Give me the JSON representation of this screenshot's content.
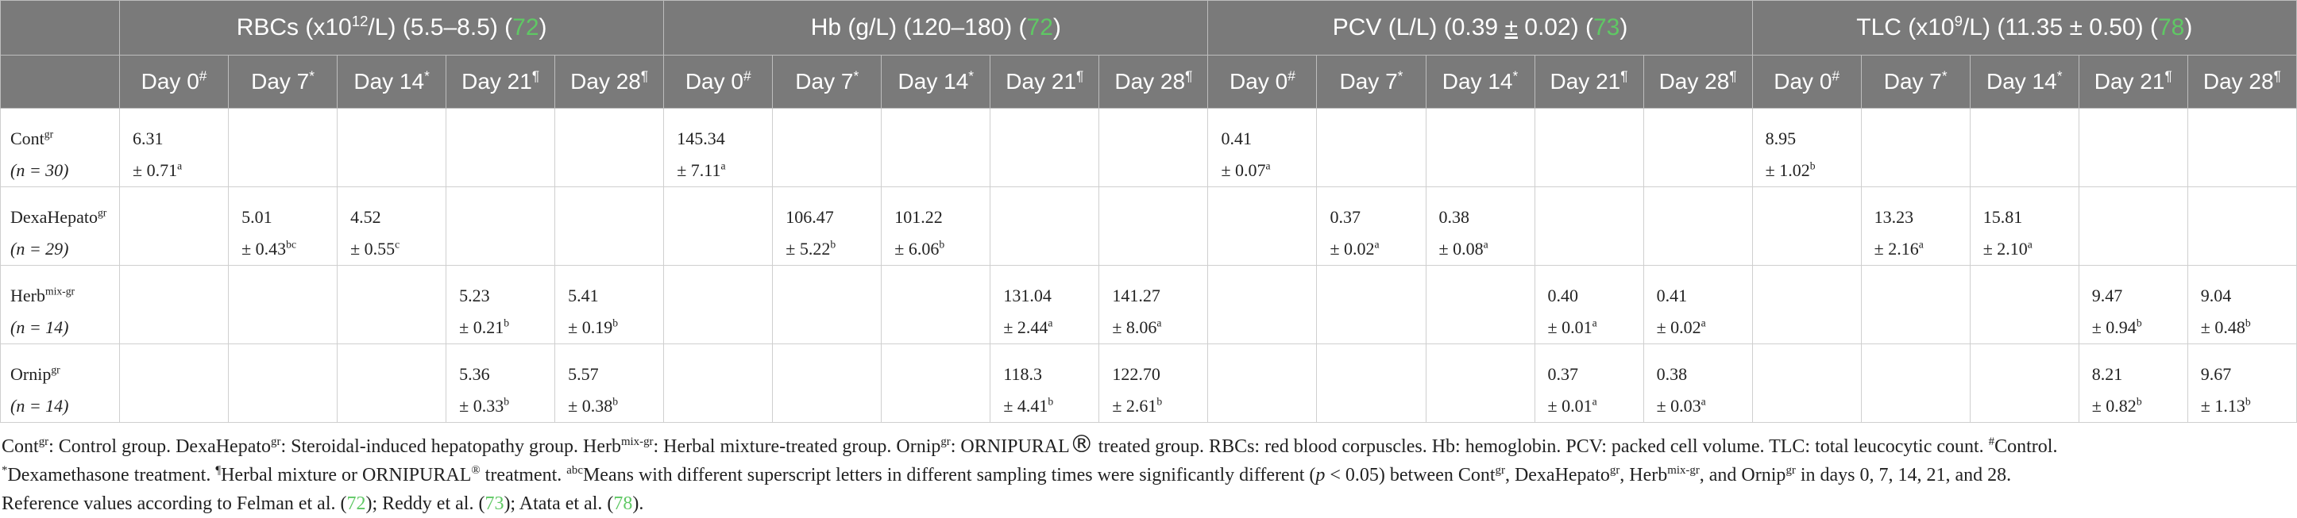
{
  "headers": {
    "groups": [
      {
        "title": "RBCs (",
        "unit_pre": "x10",
        "unit_sup": "12",
        "unit_post": "/L) (5.5–8.5) (",
        "ref": "72",
        "close": ")"
      },
      {
        "title": "Hb (g/L) (120–180) (",
        "unit_pre": "",
        "unit_sup": "",
        "unit_post": "",
        "ref": "72",
        "close": ")"
      },
      {
        "title": "PCV (L/L) (0.39 ",
        "unit_pre": "±",
        "unit_sup": "",
        "unit_post": " 0.02) (",
        "ref": "73",
        "close": ")"
      },
      {
        "title": "TLC (",
        "unit_pre": "x10",
        "unit_sup": "9",
        "unit_post": "/L) (11.35 ± 0.50) (",
        "ref": "78",
        "close": ")"
      }
    ],
    "days": [
      {
        "label": "Day 0",
        "mark": "#"
      },
      {
        "label": "Day 7",
        "mark": "*"
      },
      {
        "label": "Day 14",
        "mark": "*"
      },
      {
        "label": "Day 21",
        "mark": "¶"
      },
      {
        "label": "Day 28",
        "mark": "¶"
      }
    ]
  },
  "rows": [
    {
      "name": "Cont",
      "name_sup": "gr",
      "n": "(n = 30)",
      "cells": [
        {
          "v": "6.31",
          "sd": "± 0.71",
          "s": "a"
        },
        {},
        {},
        {},
        {},
        {
          "v": "145.34",
          "sd": "± 7.11",
          "s": "a"
        },
        {},
        {},
        {},
        {},
        {
          "v": "0.41",
          "sd": "± 0.07",
          "s": "a"
        },
        {},
        {},
        {},
        {},
        {
          "v": "8.95",
          "sd": "± 1.02",
          "s": "b"
        },
        {},
        {},
        {},
        {}
      ]
    },
    {
      "name": "DexaHepato",
      "name_sup": "gr",
      "n": "(n = 29)",
      "cells": [
        {},
        {
          "v": "5.01",
          "sd": "± 0.43",
          "s": "bc"
        },
        {
          "v": "4.52",
          "sd": "± 0.55",
          "s": "c"
        },
        {},
        {},
        {},
        {
          "v": "106.47",
          "sd": "± 5.22",
          "s": "b"
        },
        {
          "v": "101.22",
          "sd": "± 6.06",
          "s": "b"
        },
        {},
        {},
        {},
        {
          "v": "0.37",
          "sd": "± 0.02",
          "s": "a"
        },
        {
          "v": "0.38",
          "sd": "± 0.08",
          "s": "a"
        },
        {},
        {},
        {},
        {
          "v": "13.23",
          "sd": "± 2.16",
          "s": "a"
        },
        {
          "v": "15.81",
          "sd": "± 2.10",
          "s": "a"
        },
        {},
        {}
      ]
    },
    {
      "name": "Herb",
      "name_sup": "mix-gr",
      "n": "(n = 14)",
      "cells": [
        {},
        {},
        {},
        {
          "v": "5.23",
          "sd": "± 0.21",
          "s": "b"
        },
        {
          "v": "5.41",
          "sd": "± 0.19",
          "s": "b"
        },
        {},
        {},
        {},
        {
          "v": "131.04",
          "sd": "± 2.44",
          "s": "a"
        },
        {
          "v": "141.27",
          "sd": "± 8.06",
          "s": "a"
        },
        {},
        {},
        {},
        {
          "v": "0.40",
          "sd": "± 0.01",
          "s": "a"
        },
        {
          "v": "0.41",
          "sd": "± 0.02",
          "s": "a"
        },
        {},
        {},
        {},
        {
          "v": "9.47",
          "sd": "± 0.94",
          "s": "b"
        },
        {
          "v": "9.04",
          "sd": "± 0.48",
          "s": "b"
        }
      ]
    },
    {
      "name": "Ornip",
      "name_sup": "gr",
      "n": "(n = 14)",
      "cells": [
        {},
        {},
        {},
        {
          "v": "5.36",
          "sd": "± 0.33",
          "s": "b"
        },
        {
          "v": "5.57",
          "sd": "± 0.38",
          "s": "b"
        },
        {},
        {},
        {},
        {
          "v": "118.3",
          "sd": "± 4.41",
          "s": "b"
        },
        {
          "v": "122.70",
          "sd": "± 2.61",
          "s": "b"
        },
        {},
        {},
        {},
        {
          "v": "0.37",
          "sd": "± 0.01",
          "s": "a"
        },
        {
          "v": "0.38",
          "sd": "± 0.03",
          "s": "a"
        },
        {},
        {},
        {},
        {
          "v": "8.21",
          "sd": "± 0.82",
          "s": "b"
        },
        {
          "v": "9.67",
          "sd": "± 1.13",
          "s": "b"
        }
      ]
    }
  ],
  "footnote": {
    "line1": {
      "a": "Cont",
      "a_sup": "gr",
      "b": ": Control group. DexaHepato",
      "b_sup": "gr",
      "c": ": Steroidal-induced hepatopathy group. Herb",
      "c_sup": "mix-gr",
      "d": ": Herbal mixture-treated group. Ornip",
      "d_sup": "gr",
      "e": ": ORNIPURAL",
      "e_reg": "®",
      "f": " treated group. RBCs: red blood corpuscles. Hb: hemoglobin. PCV: packed cell volume. TLC: total leucocytic count. ",
      "f_sup": "#",
      "g": "Control."
    },
    "line2": {
      "a_sup": "*",
      "a": "Dexamethasone treatment. ",
      "b_sup": "¶",
      "b": "Herbal mixture or ORNIPURAL",
      "b2_sup": "®",
      "c": " treatment. ",
      "c_sup": "abc",
      "d": "Means with different superscript letters in different sampling times were significantly different (",
      "p": "p",
      "e": " < 0.05) between Cont",
      "e_sup": "gr",
      "f": ", DexaHepato",
      "f_sup": "gr",
      "g": ", Herb",
      "g_sup": "mix-gr",
      "h": ", and Ornip",
      "h_sup": "gr",
      "i": " in days 0, 7, 14, 21, and 28."
    },
    "line3": {
      "a": "Reference values according to Felman et al. (",
      "r1": "72",
      "b": "); Reddy et al. (",
      "r2": "73",
      "c": "); Atata et al. (",
      "r3": "78",
      "d": ")."
    }
  }
}
